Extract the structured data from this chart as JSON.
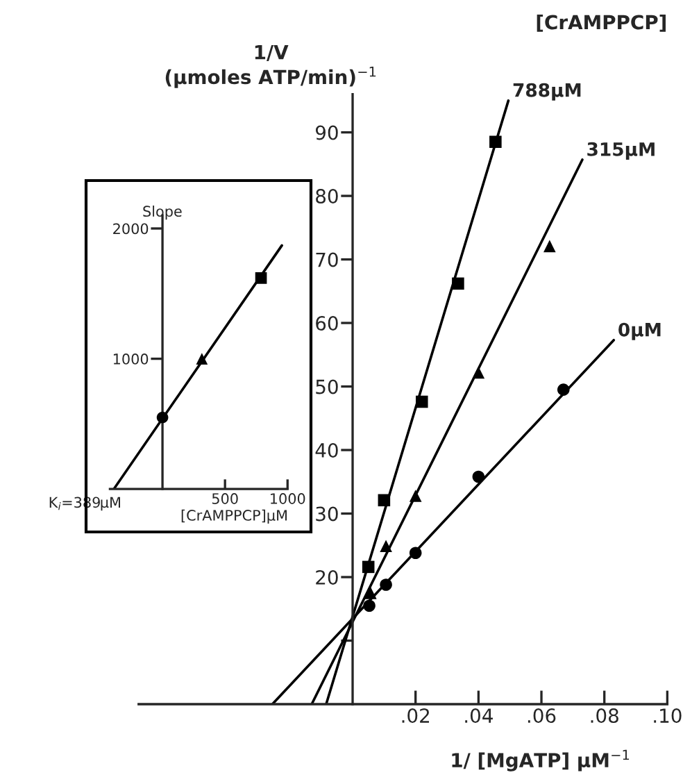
{
  "chart_data": [
    {
      "type": "scatter",
      "xlabel": "1/ [MgATP] µM$^{−1}$",
      "ylabel": "1/V\n(µmoles ATP/min)$^{−1}$",
      "legend_title": "[CrAMPPCP]",
      "xlim": [
        -0.068,
        0.1
      ],
      "ylim": [
        0,
        96
      ],
      "xticks": [
        {
          "value": 0.02,
          "label": ".02"
        },
        {
          "value": 0.04,
          "label": ".04"
        },
        {
          "value": 0.06,
          "label": ".06"
        },
        {
          "value": 0.08,
          "label": ".08"
        },
        {
          "value": 0.1,
          "label": ".10"
        }
      ],
      "yticks": [
        {
          "value": 10,
          "label": null
        },
        20,
        30,
        40,
        50,
        60,
        70,
        80,
        90
      ],
      "legend": false,
      "grid": false,
      "series": [
        {
          "type": "scatter",
          "marker": "circle",
          "color": "#000000",
          "x": [
            0.0053,
            0.0106,
            0.02,
            0.04,
            0.067
          ],
          "values": [
            15.5,
            18.8,
            23.8,
            35.8,
            49.5
          ]
        },
        {
          "type": "scatter",
          "marker": "triangle",
          "color": "#000000",
          "x": [
            0.0057,
            0.0106,
            0.02,
            0.04,
            0.0626
          ],
          "values": [
            17.5,
            24.9,
            32.8,
            52.2,
            72.1
          ]
        },
        {
          "type": "scatter",
          "marker": "square",
          "color": "#000000",
          "x": [
            0.005,
            0.01,
            0.022,
            0.0335,
            0.0454
          ],
          "values": [
            21.6,
            32.1,
            47.6,
            66.2,
            88.5
          ]
        },
        {
          "type": "line",
          "name": "0µM",
          "color": "#000000",
          "x": [
            -0.0255,
            0.083
          ],
          "values": [
            0,
            57.3
          ]
        },
        {
          "type": "line",
          "name": "315µM",
          "color": "#000000",
          "x": [
            -0.013,
            0.073
          ],
          "values": [
            0,
            85.7
          ]
        },
        {
          "type": "line",
          "name": "788µM",
          "color": "#000000",
          "x": [
            -0.0084,
            0.0495
          ],
          "values": [
            0,
            95
          ]
        }
      ]
    },
    {
      "type": "scatter",
      "xlabel": "[CrAMPPCP]µM",
      "ylabel": "Slope",
      "xlim": [
        -420,
        1000
      ],
      "ylim": [
        0,
        2100
      ],
      "xticks": [
        500,
        1000
      ],
      "yticks": [
        1000,
        2000
      ],
      "legend": false,
      "grid": false,
      "annotations": [
        {
          "text": "K$_{i}$=389µM",
          "x": -389,
          "y": 0
        }
      ],
      "series": [
        {
          "type": "scatter",
          "marker": "circle",
          "color": "#000000",
          "x": [
            0
          ],
          "values": [
            550
          ]
        },
        {
          "type": "scatter",
          "marker": "triangle",
          "color": "#000000",
          "x": [
            315
          ],
          "values": [
            1000
          ]
        },
        {
          "type": "scatter",
          "marker": "square",
          "color": "#000000",
          "x": [
            788
          ],
          "values": [
            1620
          ]
        },
        {
          "type": "line",
          "color": "#000000",
          "x": [
            -389,
            955
          ],
          "values": [
            0,
            1870
          ]
        }
      ]
    }
  ]
}
